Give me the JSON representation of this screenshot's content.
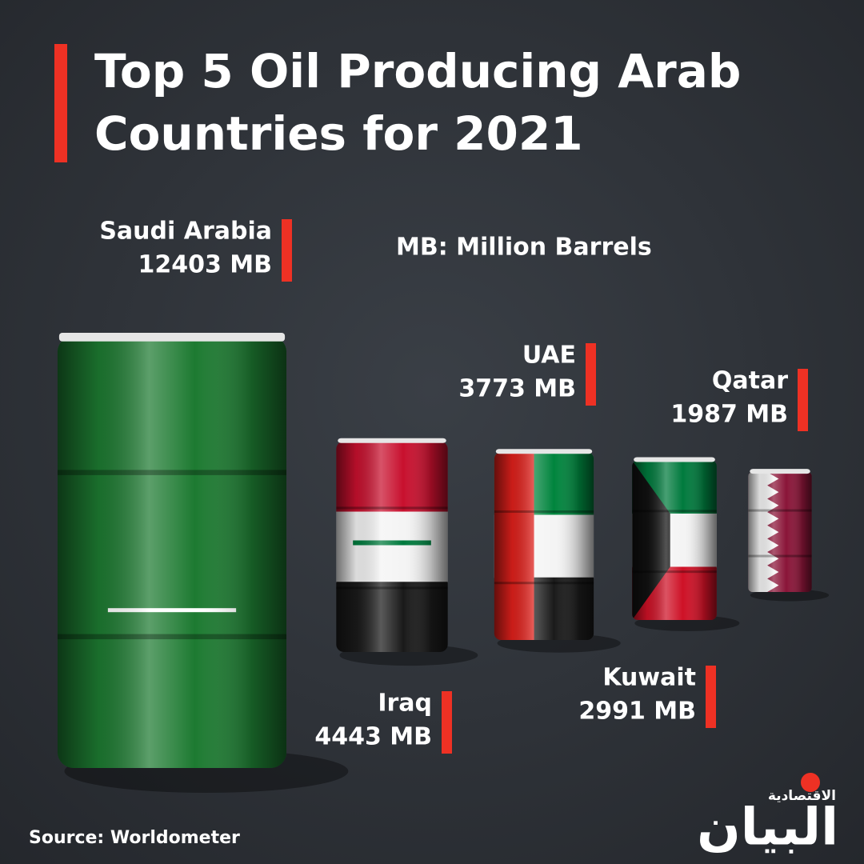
{
  "chart_data": {
    "type": "bar",
    "title": "Top 5 Oil Producing Arab Countries for 2021",
    "note": "MB: Million Barrels",
    "source": "Source: Worldometer",
    "categories": [
      "Saudi Arabia",
      "Iraq",
      "UAE",
      "Kuwait",
      "Qatar"
    ],
    "values": [
      12403,
      4443,
      3773,
      2991,
      1987
    ],
    "value_labels": [
      "12403 MB",
      "4443 MB",
      "3773 MB",
      "2991 MB",
      "1987 MB"
    ],
    "accent_color": "#ee3124"
  },
  "logo": {
    "name": "البيان",
    "subtitle": "الاقتصادية"
  }
}
